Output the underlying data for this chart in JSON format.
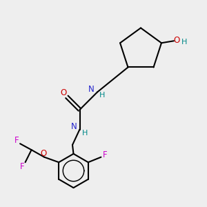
{
  "bg_color": "#eeeeee",
  "atom_colors": {
    "C": "#000000",
    "N": "#2222cc",
    "O": "#cc0000",
    "F": "#cc00cc",
    "H": "#008888"
  },
  "bond_color": "#000000",
  "bond_width": 1.5
}
